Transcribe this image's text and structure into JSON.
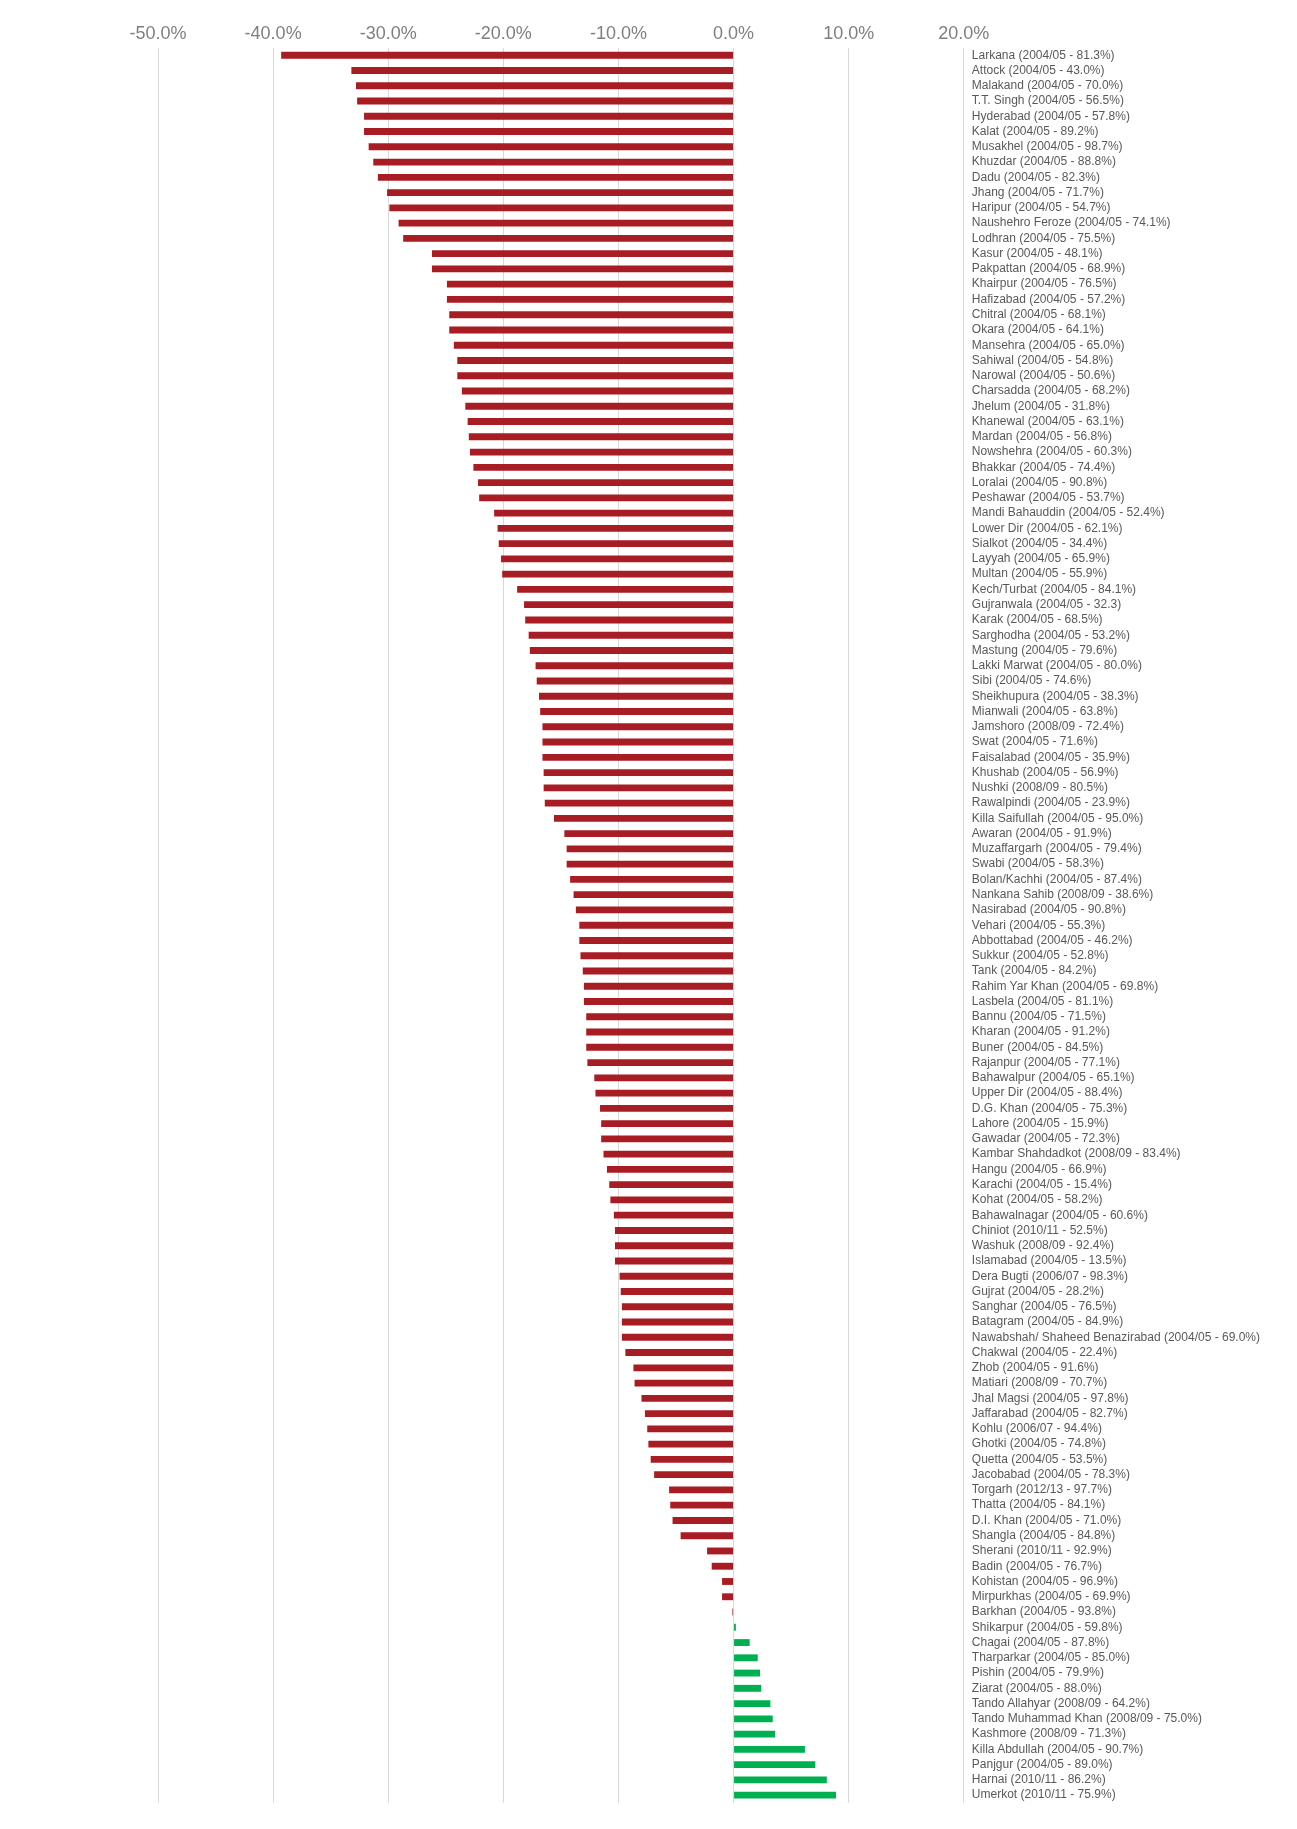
{
  "chart_data": {
    "type": "bar",
    "orientation": "horizontal",
    "categories": [
      "Larkana (2004/05 - 81.3%)",
      "Attock (2004/05 - 43.0%)",
      "Malakand (2004/05 - 70.0%)",
      "T.T. Singh (2004/05 - 56.5%)",
      "Hyderabad (2004/05 - 57.8%)",
      "Kalat (2004/05 - 89.2%)",
      "Musakhel (2004/05 - 98.7%)",
      "Khuzdar (2004/05 - 88.8%)",
      "Dadu (2004/05 - 82.3%)",
      "Jhang (2004/05 - 71.7%)",
      "Haripur (2004/05 - 54.7%)",
      "Naushehro Feroze (2004/05 - 74.1%)",
      "Lodhran (2004/05 - 75.5%)",
      "Kasur (2004/05 - 48.1%)",
      "Pakpattan (2004/05 - 68.9%)",
      "Khairpur (2004/05 - 76.5%)",
      "Hafizabad (2004/05 - 57.2%)",
      "Chitral (2004/05 - 68.1%)",
      "Okara (2004/05 - 64.1%)",
      "Mansehra (2004/05 - 65.0%)",
      "Sahiwal (2004/05 - 54.8%)",
      "Narowal (2004/05 - 50.6%)",
      "Charsadda (2004/05 - 68.2%)",
      "Jhelum (2004/05 - 31.8%)",
      "Khanewal (2004/05 - 63.1%)",
      "Mardan (2004/05 - 56.8%)",
      "Nowshehra (2004/05 - 60.3%)",
      "Bhakkar (2004/05 - 74.4%)",
      "Loralai (2004/05 - 90.8%)",
      "Peshawar (2004/05 - 53.7%)",
      "Mandi Bahauddin (2004/05 - 52.4%)",
      "Lower Dir (2004/05 - 62.1%)",
      "Sialkot (2004/05 - 34.4%)",
      "Layyah (2004/05 - 65.9%)",
      "Multan (2004/05 - 55.9%)",
      "Kech/Turbat (2004/05 - 84.1%)",
      "Gujranwala (2004/05 - 32.3)",
      "Karak (2004/05 - 68.5%)",
      "Sarghodha (2004/05 - 53.2%)",
      "Mastung (2004/05 - 79.6%)",
      "Lakki Marwat (2004/05 - 80.0%)",
      "Sibi (2004/05 - 74.6%)",
      "Sheikhupura (2004/05 - 38.3%)",
      "Mianwali (2004/05 - 63.8%)",
      "Jamshoro (2008/09 - 72.4%)",
      "Swat (2004/05 - 71.6%)",
      "Faisalabad (2004/05 - 35.9%)",
      "Khushab (2004/05 - 56.9%)",
      "Nushki (2008/09 - 80.5%)",
      "Rawalpindi (2004/05 - 23.9%)",
      "Killa Saifullah (2004/05 - 95.0%)",
      "Awaran (2004/05 - 91.9%)",
      "Muzaffargarh (2004/05 - 79.4%)",
      "Swabi (2004/05 - 58.3%)",
      "Bolan/Kachhi (2004/05 - 87.4%)",
      "Nankana Sahib (2008/09 - 38.6%)",
      "Nasirabad (2004/05 - 90.8%)",
      "Vehari (2004/05 - 55.3%)",
      "Abbottabad (2004/05 - 46.2%)",
      "Sukkur (2004/05 - 52.8%)",
      "Tank (2004/05 - 84.2%)",
      "Rahim Yar Khan (2004/05 - 69.8%)",
      "Lasbela (2004/05 - 81.1%)",
      "Bannu (2004/05 - 71.5%)",
      "Kharan (2004/05 - 91.2%)",
      "Buner (2004/05 - 84.5%)",
      "Rajanpur (2004/05 - 77.1%)",
      "Bahawalpur (2004/05 - 65.1%)",
      "Upper Dir (2004/05 - 88.4%)",
      "D.G. Khan (2004/05 - 75.3%)",
      "Lahore (2004/05 - 15.9%)",
      "Gawadar (2004/05 - 72.3%)",
      "Kambar Shahdadkot (2008/09 - 83.4%)",
      "Hangu (2004/05 - 66.9%)",
      "Karachi (2004/05 - 15.4%)",
      "Kohat (2004/05 - 58.2%)",
      "Bahawalnagar (2004/05 - 60.6%)",
      "Chiniot (2010/11 - 52.5%)",
      "Washuk (2008/09 - 92.4%)",
      "Islamabad (2004/05 - 13.5%)",
      "Dera Bugti (2006/07 - 98.3%)",
      "Gujrat (2004/05 - 28.2%)",
      "Sanghar (2004/05 - 76.5%)",
      "Batagram (2004/05 - 84.9%)",
      "Nawabshah/ Shaheed Benazirabad (2004/05 - 69.0%)",
      "Chakwal (2004/05 - 22.4%)",
      "Zhob (2004/05 - 91.6%)",
      "Matiari (2008/09 - 70.7%)",
      "Jhal Magsi (2004/05 - 97.8%)",
      "Jaffarabad (2004/05 - 82.7%)",
      "Kohlu (2006/07 - 94.4%)",
      "Ghotki (2004/05 - 74.8%)",
      "Quetta (2004/05 - 53.5%)",
      "Jacobabad (2004/05 - 78.3%)",
      "Torgarh (2012/13 - 97.7%)",
      "Thatta (2004/05 - 84.1%)",
      "D.I. Khan (2004/05 - 71.0%)",
      "Shangla (2004/05 - 84.8%)",
      "Sherani (2010/11 - 92.9%)",
      "Badin (2004/05 - 76.7%)",
      "Kohistan (2004/05 - 96.9%)",
      "Mirpurkhas (2004/05 - 69.9%)",
      "Barkhan (2004/05 - 93.8%)",
      "Shikarpur (2004/05 - 59.8%)",
      "Chagai (2004/05 - 87.8%)",
      "Tharparkar (2004/05 - 85.0%)",
      "Pishin (2004/05 - 79.9%)",
      "Ziarat (2004/05 - 88.0%)",
      "Tando Allahyar (2008/09 - 64.2%)",
      "Tando Muhammad Khan (2008/09 - 75.0%)",
      "Kashmore (2008/09 - 71.3%)",
      "Killa Abdullah (2004/05 - 90.7%)",
      "Panjgur (2004/05 - 89.0%)",
      "Harnai (2010/11 - 86.2%)",
      "Umerkot (2010/11 - 75.9%)"
    ],
    "values": [
      -39.3,
      -33.2,
      -32.8,
      -32.7,
      -32.1,
      -32.1,
      -31.7,
      -31.3,
      -30.9,
      -30.1,
      -29.9,
      -29.1,
      -28.7,
      -26.2,
      -26.2,
      -24.9,
      -24.9,
      -24.7,
      -24.7,
      -24.3,
      -24.0,
      -24.0,
      -23.6,
      -23.3,
      -23.1,
      -23.0,
      -22.9,
      -22.6,
      -22.2,
      -22.1,
      -20.8,
      -20.5,
      -20.4,
      -20.2,
      -20.1,
      -18.8,
      -18.2,
      -18.1,
      -17.8,
      -17.7,
      -17.2,
      -17.1,
      -16.9,
      -16.8,
      -16.6,
      -16.6,
      -16.6,
      -16.5,
      -16.5,
      -16.4,
      -15.6,
      -14.7,
      -14.5,
      -14.5,
      -14.2,
      -13.9,
      -13.7,
      -13.4,
      -13.4,
      -13.3,
      -13.1,
      -13.0,
      -13.0,
      -12.8,
      -12.8,
      -12.8,
      -12.7,
      -12.1,
      -12.0,
      -11.6,
      -11.5,
      -11.5,
      -11.3,
      -11.0,
      -10.8,
      -10.7,
      -10.4,
      -10.3,
      -10.3,
      -10.3,
      -9.9,
      -9.8,
      -9.7,
      -9.7,
      -9.7,
      -9.4,
      -8.7,
      -8.6,
      -8.0,
      -7.7,
      -7.5,
      -7.4,
      -7.2,
      -6.9,
      -5.6,
      -5.5,
      -5.3,
      -4.6,
      -2.3,
      -1.9,
      -1.0,
      -1.0,
      -0.1,
      0.2,
      1.4,
      2.1,
      2.3,
      2.4,
      3.2,
      3.4,
      3.6,
      6.2,
      7.1,
      8.1,
      8.9
    ],
    "colors": [
      "#a81c24",
      "#a81c24",
      "#a81c24",
      "#a81c24",
      "#a81c24",
      "#a81c24",
      "#a81c24",
      "#a81c24",
      "#a81c24",
      "#a81c24",
      "#a81c24",
      "#a81c24",
      "#a81c24",
      "#a81c24",
      "#a81c24",
      "#a81c24",
      "#a81c24",
      "#a81c24",
      "#a81c24",
      "#a81c24",
      "#a81c24",
      "#a81c24",
      "#a81c24",
      "#a81c24",
      "#a81c24",
      "#a81c24",
      "#a81c24",
      "#a81c24",
      "#a81c24",
      "#a81c24",
      "#a81c24",
      "#a81c24",
      "#a81c24",
      "#a81c24",
      "#a81c24",
      "#a81c24",
      "#a81c24",
      "#a81c24",
      "#a81c24",
      "#a81c24",
      "#a81c24",
      "#a81c24",
      "#a81c24",
      "#a81c24",
      "#a81c24",
      "#a81c24",
      "#a81c24",
      "#a81c24",
      "#a81c24",
      "#a81c24",
      "#a81c24",
      "#a81c24",
      "#a81c24",
      "#a81c24",
      "#a81c24",
      "#a81c24",
      "#a81c24",
      "#a81c24",
      "#a81c24",
      "#a81c24",
      "#a81c24",
      "#a81c24",
      "#a81c24",
      "#a81c24",
      "#a81c24",
      "#a81c24",
      "#a81c24",
      "#a81c24",
      "#a81c24",
      "#a81c24",
      "#a81c24",
      "#a81c24",
      "#a81c24",
      "#a81c24",
      "#a81c24",
      "#a81c24",
      "#a81c24",
      "#a81c24",
      "#a81c24",
      "#a81c24",
      "#a81c24",
      "#a81c24",
      "#a81c24",
      "#a81c24",
      "#a81c24",
      "#a81c24",
      "#a81c24",
      "#a81c24",
      "#a81c24",
      "#a81c24",
      "#a81c24",
      "#a81c24",
      "#a81c24",
      "#a81c24",
      "#a81c24",
      "#a81c24",
      "#a81c24",
      "#a81c24",
      "#a81c24",
      "#a81c24",
      "#a81c24",
      "#a81c24",
      "#a81c24",
      "#00b050",
      "#00b050",
      "#00b050",
      "#00b050",
      "#00b050",
      "#00b050",
      "#00b050",
      "#00b050",
      "#00b050",
      "#00b050",
      "#00b050",
      "#00b050"
    ],
    "xlim": [
      -50,
      20
    ],
    "xticks": [
      {
        "value": -50,
        "label": "-50.0%"
      },
      {
        "value": -40,
        "label": "-40.0%"
      },
      {
        "value": -30,
        "label": "-30.0%"
      },
      {
        "value": -20,
        "label": "-20.0%"
      },
      {
        "value": -10,
        "label": "-10.0%"
      },
      {
        "value": 0,
        "label": "0.0%"
      },
      {
        "value": 10,
        "label": "10.0%"
      },
      {
        "value": 20,
        "label": "20.0%"
      }
    ],
    "grid": "x",
    "legend": false
  }
}
